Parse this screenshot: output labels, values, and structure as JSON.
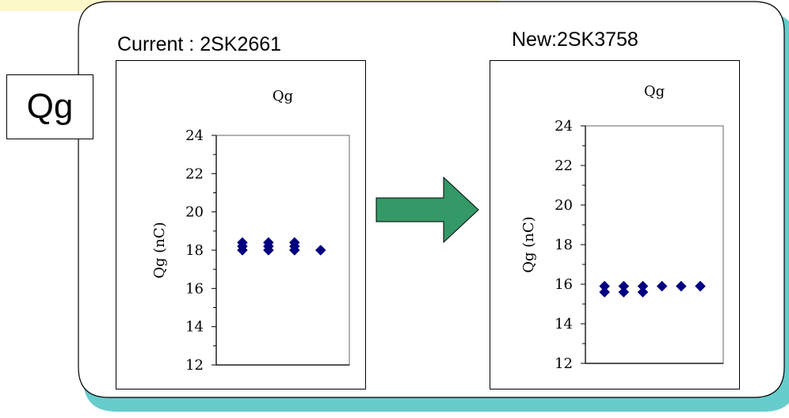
{
  "label_box": {
    "text": "Qg"
  },
  "panels": [
    {
      "title": "Current : 2SK2661"
    },
    {
      "title": "New:2SK3758"
    }
  ],
  "colors": {
    "marker": "#000080",
    "arrow_fill": "#339966",
    "panel_shadow": "#66cccc",
    "highlight_band": "#fdf8c9"
  },
  "chart_data": [
    {
      "type": "scatter",
      "title": "Qg",
      "xlabel": "",
      "ylabel": "Qg (nC)",
      "ylim": [
        12,
        24
      ],
      "yticks": [
        12,
        14,
        16,
        18,
        20,
        22,
        24
      ],
      "grid": false,
      "legend": "none",
      "marker_color": "#000080",
      "points": [
        {
          "x": 1,
          "y": 18.4
        },
        {
          "x": 1,
          "y": 18.2
        },
        {
          "x": 1,
          "y": 18.0
        },
        {
          "x": 2,
          "y": 18.4
        },
        {
          "x": 2,
          "y": 18.2
        },
        {
          "x": 2,
          "y": 18.0
        },
        {
          "x": 3,
          "y": 18.4
        },
        {
          "x": 3,
          "y": 18.2
        },
        {
          "x": 3,
          "y": 18.0
        },
        {
          "x": 4,
          "y": 18.0
        }
      ],
      "xlim": [
        0,
        5.1
      ]
    },
    {
      "type": "scatter",
      "title": "Qg",
      "xlabel": "",
      "ylabel": "Qg (nC)",
      "ylim": [
        12,
        24
      ],
      "yticks": [
        12,
        14,
        16,
        18,
        20,
        22,
        24
      ],
      "grid": false,
      "legend": "none",
      "marker_color": "#000080",
      "points": [
        {
          "x": 1,
          "y": 15.9
        },
        {
          "x": 1,
          "y": 15.6
        },
        {
          "x": 2,
          "y": 15.9
        },
        {
          "x": 2,
          "y": 15.6
        },
        {
          "x": 3,
          "y": 15.9
        },
        {
          "x": 3,
          "y": 15.6
        },
        {
          "x": 4,
          "y": 15.9
        },
        {
          "x": 5,
          "y": 15.9
        },
        {
          "x": 6,
          "y": 15.9
        }
      ],
      "xlim": [
        0,
        7.2
      ]
    }
  ]
}
